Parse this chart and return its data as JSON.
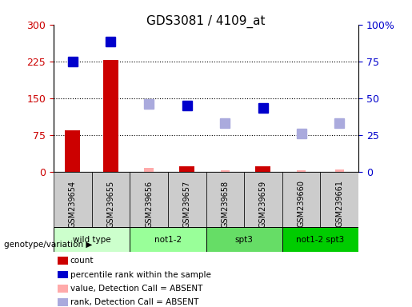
{
  "title": "GDS3081 / 4109_at",
  "samples": [
    "GSM239654",
    "GSM239655",
    "GSM239656",
    "GSM239657",
    "GSM239658",
    "GSM239659",
    "GSM239660",
    "GSM239661"
  ],
  "groups": [
    {
      "label": "wild type",
      "samples": [
        "GSM239654",
        "GSM239655"
      ],
      "color": "#ccffcc"
    },
    {
      "label": "not1-2",
      "samples": [
        "GSM239656",
        "GSM239657"
      ],
      "color": "#99ff99"
    },
    {
      "label": "spt3",
      "samples": [
        "GSM239658",
        "GSM239659"
      ],
      "color": "#66dd66"
    },
    {
      "label": "not1-2 spt3",
      "samples": [
        "GSM239660",
        "GSM239661"
      ],
      "color": "#00cc00"
    }
  ],
  "count_present": [
    85,
    228,
    null,
    12,
    null,
    12,
    null,
    null
  ],
  "count_absent": [
    null,
    null,
    8,
    null,
    3,
    null,
    3,
    5
  ],
  "rank_present": [
    225,
    265,
    null,
    135,
    null,
    130,
    null,
    null
  ],
  "rank_absent": [
    null,
    null,
    138,
    null,
    100,
    null,
    78,
    100
  ],
  "left_ylim": [
    0,
    300
  ],
  "right_ylim": [
    0,
    100
  ],
  "left_yticks": [
    0,
    75,
    150,
    225,
    300
  ],
  "right_yticks": [
    0,
    25,
    50,
    75,
    100
  ],
  "left_yticklabels": [
    "0",
    "75",
    "150",
    "225",
    "300"
  ],
  "right_yticklabels": [
    "0",
    "25",
    "50",
    "75",
    "100%"
  ],
  "left_tick_color": "#cc0000",
  "right_tick_color": "#0000cc",
  "bar_width": 0.4,
  "count_present_color": "#cc0000",
  "count_absent_color": "#ffaaaa",
  "rank_present_color": "#0000cc",
  "rank_absent_color": "#aaaadd",
  "marker_size": 8,
  "grid_color": "#000000",
  "bg_color": "#ffffff",
  "plot_bg": "#ffffff",
  "legend_items": [
    {
      "label": "count",
      "color": "#cc0000",
      "type": "rect"
    },
    {
      "label": "percentile rank within the sample",
      "color": "#0000cc",
      "type": "rect"
    },
    {
      "label": "value, Detection Call = ABSENT",
      "color": "#ffaaaa",
      "type": "rect"
    },
    {
      "label": "rank, Detection Call = ABSENT",
      "color": "#aaaadd",
      "type": "rect"
    }
  ],
  "genotype_label": "genotype/variation",
  "title_fontsize": 11,
  "tick_fontsize": 9,
  "label_fontsize": 8
}
